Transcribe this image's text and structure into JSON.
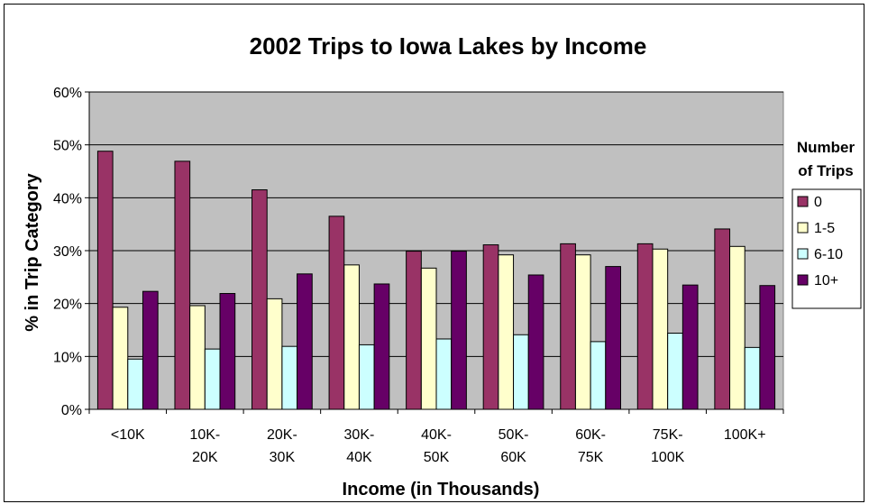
{
  "chart_data": {
    "type": "bar",
    "title": "2002 Trips to Iowa Lakes by Income",
    "xlabel": "Income (in Thousands)",
    "ylabel": "% in Trip Category",
    "ylim": [
      0,
      60
    ],
    "yticks": [
      "0%",
      "10%",
      "20%",
      "30%",
      "40%",
      "50%",
      "60%"
    ],
    "grid": true,
    "legend_position": "right",
    "legend_title": [
      "Number",
      "of Trips"
    ],
    "categories": [
      [
        "<10K"
      ],
      [
        "10K-",
        "20K"
      ],
      [
        "20K-",
        "30K"
      ],
      [
        "30K-",
        "40K"
      ],
      [
        "40K-",
        "50K"
      ],
      [
        "50K-",
        "60K"
      ],
      [
        "60K-",
        "75K"
      ],
      [
        "75K-",
        "100K"
      ],
      [
        "100K+"
      ]
    ],
    "series": [
      {
        "name": "0",
        "color": "#993366",
        "values": [
          48.8,
          46.9,
          41.5,
          36.5,
          29.9,
          31.1,
          31.3,
          31.3,
          34.1
        ]
      },
      {
        "name": "1-5",
        "color": "#ffffcc",
        "values": [
          19.3,
          19.6,
          20.9,
          27.3,
          26.7,
          29.2,
          29.2,
          30.3,
          30.8
        ]
      },
      {
        "name": "6-10",
        "color": "#ccffff",
        "values": [
          9.5,
          11.4,
          11.9,
          12.2,
          13.3,
          14.1,
          12.8,
          14.4,
          11.7
        ]
      },
      {
        "name": "10+",
        "color": "#660066",
        "values": [
          22.3,
          21.9,
          25.6,
          23.7,
          29.9,
          25.4,
          27.0,
          23.5,
          23.4
        ]
      }
    ],
    "plot_background": "#c0c0c0"
  }
}
